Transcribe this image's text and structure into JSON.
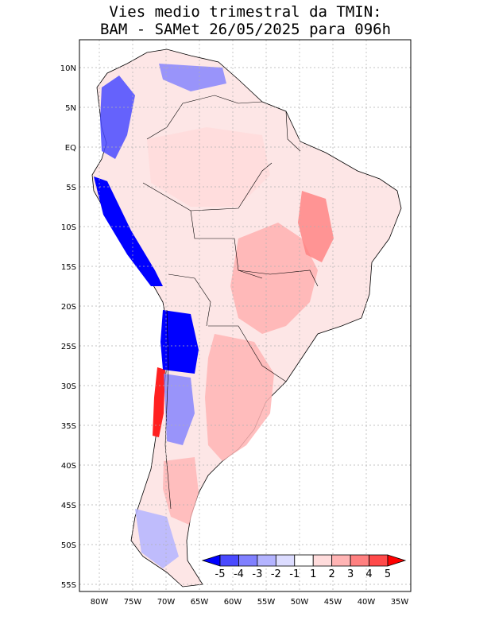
{
  "title": {
    "line1": "Vies medio trimestral da TMIN:",
    "line2": "BAM - SAMet 26/05/2025  para 096h"
  },
  "map": {
    "region": "South America",
    "variable": "TMIN bias (mean quarterly)",
    "lon_range": [
      -83,
      -34
    ],
    "lat_range": [
      -56,
      13
    ],
    "lon_ticks": [
      "80W",
      "75W",
      "70W",
      "65W",
      "60W",
      "55W",
      "50W",
      "45W",
      "40W",
      "35W"
    ],
    "lat_ticks": [
      "10N",
      "5N",
      "EQ",
      "5S",
      "10S",
      "15S",
      "20S",
      "25S",
      "30S",
      "35S",
      "40S",
      "45S",
      "50S",
      "55S"
    ]
  },
  "colorbar": {
    "labels": [
      "-5",
      "-4",
      "-3",
      "-2",
      "-1",
      "1",
      "2",
      "3",
      "4",
      "5"
    ],
    "colors": [
      "#0000ff",
      "#4a4aff",
      "#8080ff",
      "#b4b4ff",
      "#dcdcff",
      "#ffffff",
      "#ffdcdc",
      "#ffb4b4",
      "#ff8080",
      "#ff4a4a",
      "#ff0000"
    ]
  }
}
